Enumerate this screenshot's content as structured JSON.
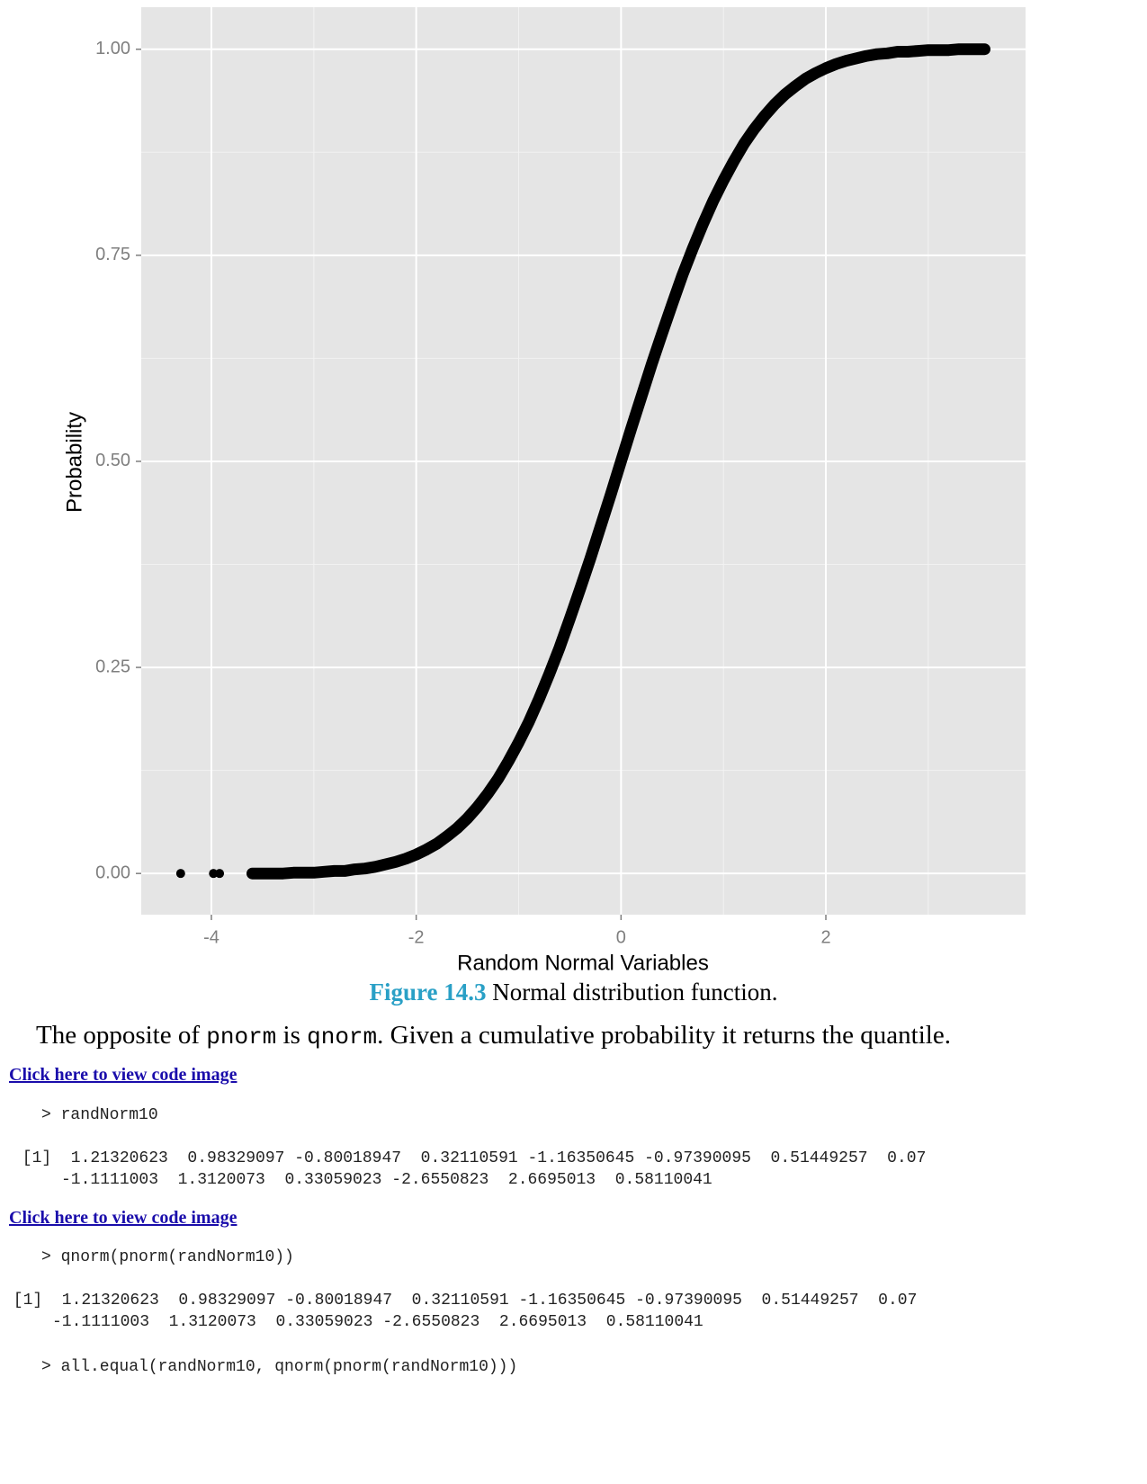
{
  "chart_data": {
    "type": "scatter",
    "x_label": "Random Normal Variables",
    "y_label": "Probability",
    "x": [
      -4.3,
      -3.98,
      -3.92,
      -3.6,
      -3.55,
      -3.5,
      -3.45,
      -3.4,
      -3.35,
      -3.3,
      -3.2,
      -3.1,
      -3.0,
      -2.9,
      -2.8,
      -2.7,
      -2.6,
      -2.5,
      -2.4,
      -2.3,
      -2.2,
      -2.1,
      -2.0,
      -1.9,
      -1.8,
      -1.7,
      -1.6,
      -1.5,
      -1.4,
      -1.3,
      -1.2,
      -1.1,
      -1.0,
      -0.9,
      -0.8,
      -0.7,
      -0.6,
      -0.5,
      -0.4,
      -0.3,
      -0.2,
      -0.1,
      0,
      0.1,
      0.2,
      0.3,
      0.4,
      0.5,
      0.6,
      0.7,
      0.8,
      0.9,
      1.0,
      1.1,
      1.2,
      1.3,
      1.4,
      1.5,
      1.6,
      1.7,
      1.8,
      1.9,
      2.0,
      2.1,
      2.2,
      2.3,
      2.4,
      2.5,
      2.6,
      2.7,
      2.8,
      2.9,
      3.0,
      3.1,
      3.2,
      3.3,
      3.4,
      3.45,
      3.5,
      3.55
    ],
    "y": [
      0,
      0,
      0,
      0,
      0,
      0,
      0,
      0,
      0,
      0,
      0.001,
      0.001,
      0.001,
      0.002,
      0.003,
      0.003,
      0.005,
      0.006,
      0.008,
      0.011,
      0.014,
      0.018,
      0.023,
      0.029,
      0.036,
      0.045,
      0.055,
      0.067,
      0.081,
      0.097,
      0.115,
      0.136,
      0.159,
      0.184,
      0.212,
      0.242,
      0.274,
      0.309,
      0.345,
      0.382,
      0.421,
      0.46,
      0.5,
      0.54,
      0.579,
      0.618,
      0.655,
      0.691,
      0.726,
      0.758,
      0.788,
      0.816,
      0.841,
      0.864,
      0.885,
      0.903,
      0.919,
      0.933,
      0.945,
      0.955,
      0.964,
      0.971,
      0.977,
      0.982,
      0.986,
      0.989,
      0.992,
      0.994,
      0.995,
      0.997,
      0.997,
      0.998,
      0.999,
      0.999,
      0.999,
      1,
      1,
      1,
      1,
      1
    ],
    "color": "#000000",
    "background": "#e5e5e5",
    "grid": true,
    "xlim": [
      -4.685,
      3.95
    ],
    "ylim": [
      -0.05,
      1.051
    ],
    "xticks": [
      -4,
      -2,
      0,
      2
    ],
    "yticks": [
      {
        "value": 0,
        "label": "0.00"
      },
      {
        "value": 0.25,
        "label": "0.25"
      },
      {
        "value": 0.5,
        "label": "0.50"
      },
      {
        "value": 0.75,
        "label": "0.75"
      },
      {
        "value": 1,
        "label": "1.00"
      }
    ],
    "x_minor_ticks": [
      -3,
      -1,
      1,
      3
    ],
    "y_minor_ticks": [
      0.125,
      0.375,
      0.625,
      0.875
    ]
  },
  "caption": {
    "label": "Figure 14.3",
    "text": "Normal distribution function."
  },
  "paragraph": {
    "before": "The opposite of ",
    "code1": "pnorm",
    "middle": " is ",
    "code2": "qnorm",
    "after": ". Given a cumulative probability it returns the quantile."
  },
  "blocks": [
    {
      "link": "Click here to view code image",
      "command": "> randNorm10",
      "output": [
        " [1]  1.21320623  0.98329097 -0.80018947  0.32110591 -1.16350645 -0.97390095  0.51449257  0.07",
        "     -1.1111003  1.3120073  0.33059023 -2.6550823  2.6695013  0.58110041"
      ]
    },
    {
      "link": "Click here to view code image",
      "command": "> qnorm(pnorm(randNorm10))",
      "output": [
        " [1]  1.21320623  0.98329097 -0.80018947  0.32110591 -1.16350645 -0.97390095  0.51449257  0.07",
        "     -1.1111003  1.3120073  0.33059023 -2.6550823  2.6695013  0.58110041"
      ]
    }
  ],
  "final_command": "> all.equal(randNorm10, qnorm(pnorm(randNorm10)))"
}
